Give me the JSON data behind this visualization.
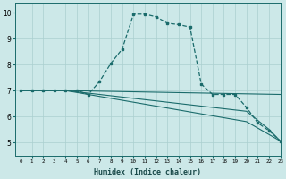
{
  "xlabel": "Humidex (Indice chaleur)",
  "xlim": [
    -0.5,
    23
  ],
  "ylim": [
    4.5,
    10.4
  ],
  "yticks": [
    5,
    6,
    7,
    8,
    9,
    10
  ],
  "xticks": [
    0,
    1,
    2,
    3,
    4,
    5,
    6,
    7,
    8,
    9,
    10,
    11,
    12,
    13,
    14,
    15,
    16,
    17,
    18,
    19,
    20,
    21,
    22,
    23
  ],
  "background_color": "#cce8e8",
  "grid_color": "#aacfcf",
  "line_color": "#1a6b6b",
  "line1_x": [
    0,
    1,
    2,
    3,
    4,
    5,
    6,
    7,
    8,
    9,
    10,
    11,
    12,
    13,
    14,
    15,
    16,
    17,
    18,
    19,
    20,
    21,
    22,
    23
  ],
  "line1_y": [
    7.0,
    7.0,
    7.0,
    7.0,
    7.0,
    7.0,
    6.85,
    7.35,
    8.05,
    8.6,
    9.95,
    9.95,
    9.85,
    9.6,
    9.55,
    9.45,
    7.25,
    6.85,
    6.85,
    6.85,
    6.35,
    5.75,
    5.45,
    5.05
  ],
  "line2_x": [
    0,
    4,
    23
  ],
  "line2_y": [
    7.0,
    7.0,
    6.85
  ],
  "line3_x": [
    0,
    4,
    20,
    21,
    22,
    23
  ],
  "line3_y": [
    7.0,
    7.0,
    6.2,
    5.85,
    5.5,
    5.05
  ],
  "line4_x": [
    0,
    4,
    20,
    21,
    22,
    23
  ],
  "line4_y": [
    7.0,
    7.0,
    5.8,
    5.55,
    5.3,
    5.05
  ]
}
